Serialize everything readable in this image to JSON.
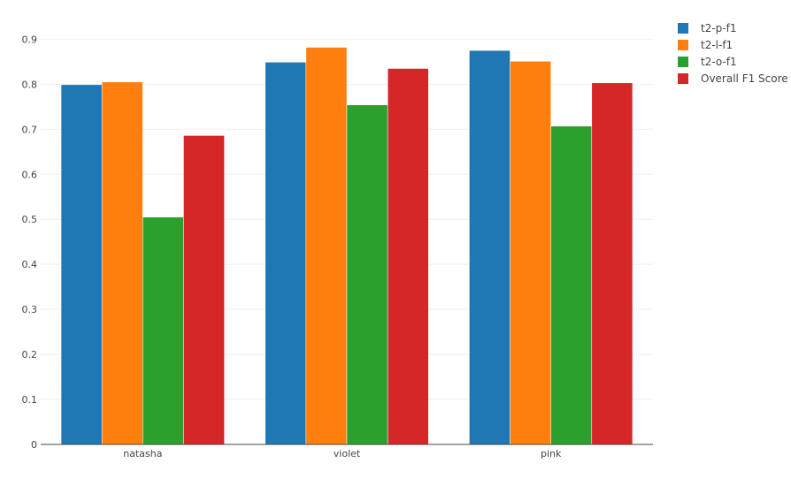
{
  "chart_data": {
    "type": "bar",
    "title": "",
    "xlabel": "",
    "ylabel": "",
    "categories": [
      "natasha",
      "violet",
      "pink"
    ],
    "series": [
      {
        "name": "t2-p-f1",
        "color": "#1f77b4",
        "values": [
          0.799,
          0.849,
          0.875
        ]
      },
      {
        "name": "t2-l-f1",
        "color": "#ff7f0e",
        "values": [
          0.805,
          0.882,
          0.851
        ]
      },
      {
        "name": "t2-o-f1",
        "color": "#2ca02c",
        "values": [
          0.505,
          0.754,
          0.707
        ]
      },
      {
        "name": "Overall F1 Score",
        "color": "#d62728",
        "values": [
          0.686,
          0.835,
          0.803
        ]
      }
    ],
    "ylim": [
      0,
      0.94
    ],
    "yticks": [
      0,
      0.1,
      0.2,
      0.3,
      0.4,
      0.5,
      0.6,
      0.7,
      0.8,
      0.9
    ],
    "ytick_labels": [
      "0",
      "0.1",
      "0.2",
      "0.3",
      "0.4",
      "0.5",
      "0.6",
      "0.7",
      "0.8",
      "0.9"
    ],
    "grid": true,
    "legend_position": "top-right"
  }
}
